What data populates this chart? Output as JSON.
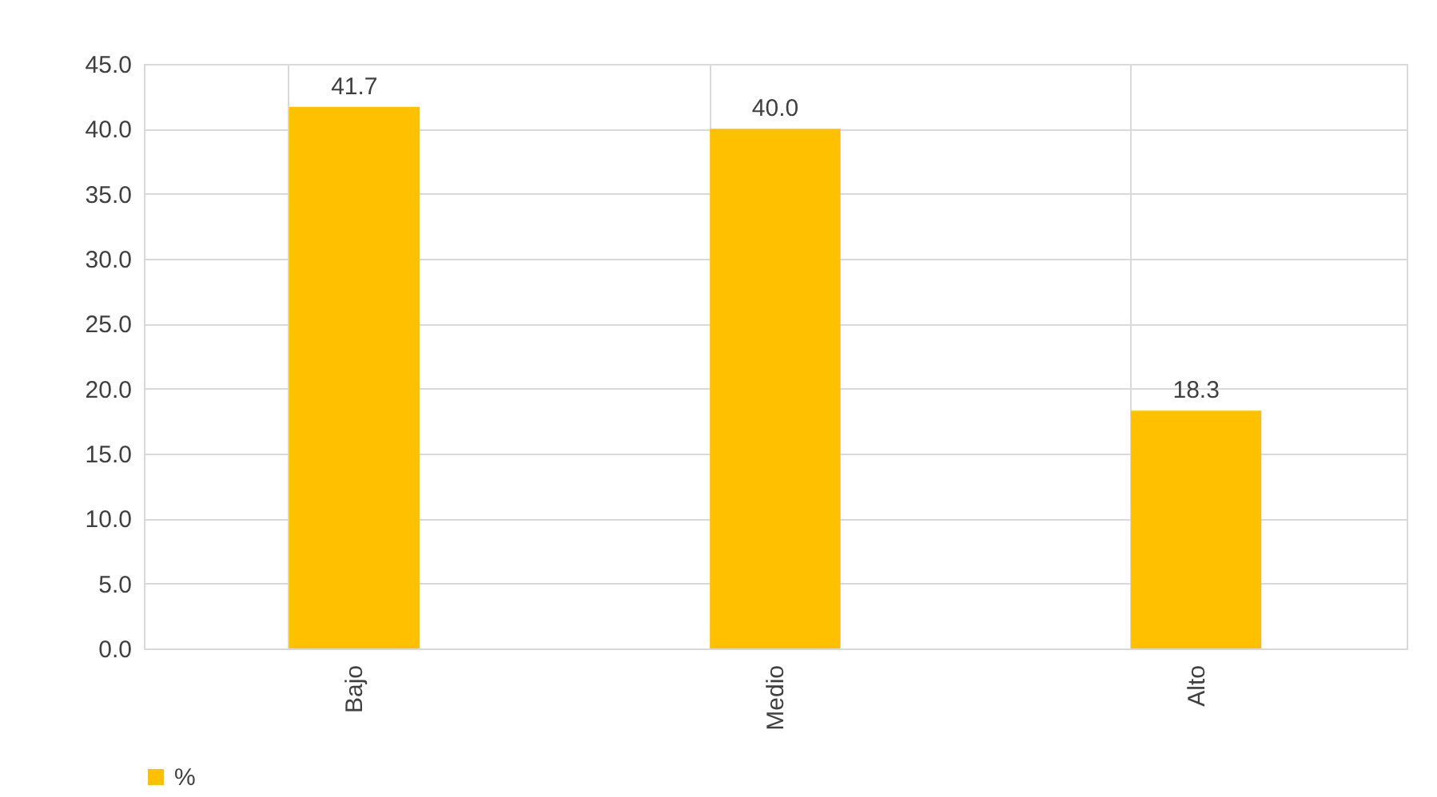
{
  "chart_data": {
    "type": "bar",
    "categories": [
      "Bajo",
      "Medio",
      "Alto"
    ],
    "series": [
      {
        "name": "%",
        "color": "#ffc000",
        "values": [
          41.7,
          40.0,
          18.3
        ],
        "value_labels": [
          "41.7",
          "40.0",
          "18.3"
        ]
      }
    ],
    "ylim": [
      0,
      45
    ],
    "yticks": [
      {
        "value": 0,
        "label": "0.0"
      },
      {
        "value": 5,
        "label": "5.0"
      },
      {
        "value": 10,
        "label": "10.0"
      },
      {
        "value": 15,
        "label": "15.0"
      },
      {
        "value": 20,
        "label": "20.0"
      },
      {
        "value": 25,
        "label": "25.0"
      },
      {
        "value": 30,
        "label": "30.0"
      },
      {
        "value": 35,
        "label": "35.0"
      },
      {
        "value": 40,
        "label": "40.0"
      },
      {
        "value": 45,
        "label": "45.0"
      }
    ],
    "grid": true,
    "legend": "bottom"
  }
}
